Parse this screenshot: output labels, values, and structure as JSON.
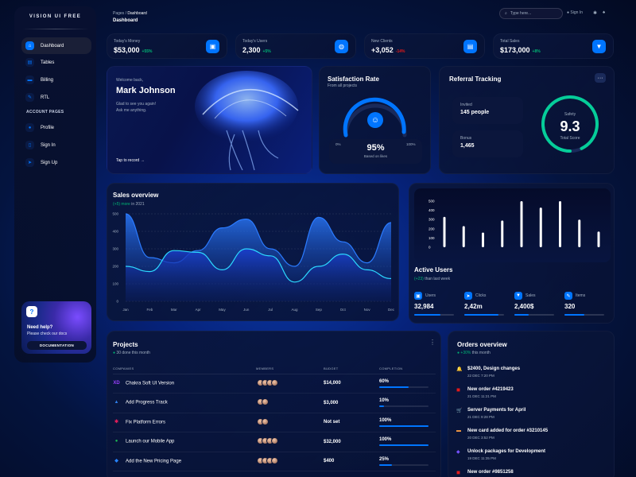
{
  "brand": "VISION UI FREE",
  "nav": {
    "dashboard": "Dashboard",
    "tables": "Tables",
    "billing": "Billing",
    "rtl": "RTL",
    "section": "ACCOUNT PAGES",
    "profile": "Profile",
    "signin": "Sign In",
    "signup": "Sign Up"
  },
  "help": {
    "title": "Need help?",
    "subtitle": "Please check our docs",
    "button": "DOCUMENTATION"
  },
  "breadcrumb": {
    "parent": "Pages",
    "current": "Dashboard"
  },
  "page_title": "Dashboard",
  "search": {
    "placeholder": "Type here..."
  },
  "header": {
    "signin": "Sign In"
  },
  "stats": [
    {
      "label": "Today's Money",
      "value": "$53,000",
      "change": "+55%",
      "icon": "wallet-icon"
    },
    {
      "label": "Today's Users",
      "value": "2,300",
      "change": "+5%",
      "icon": "globe-icon"
    },
    {
      "label": "New Clients",
      "value": "+3,052",
      "change": "-14%",
      "icon": "document-icon"
    },
    {
      "label": "Total Sales",
      "value": "$173,000",
      "change": "+8%",
      "icon": "cart-icon"
    }
  ],
  "welcome": {
    "greeting": "Welcome back,",
    "name": "Mark Johnson",
    "line1": "Glad to see you again!",
    "line2": "Ask me anything.",
    "link": "Tap to record",
    "arrow": "→"
  },
  "satisfaction": {
    "title": "Satisfaction Rate",
    "subtitle": "From all projects",
    "min": "0%",
    "max": "100%",
    "value": "95%",
    "caption": "Based on likes"
  },
  "referral": {
    "title": "Referral Tracking",
    "more": "···",
    "invited_label": "Invited",
    "invited_value": "145 people",
    "bonus_label": "Bonus",
    "bonus_value": "1,465",
    "safety_label": "Safety",
    "score": "9.3",
    "score_label": "Total Score",
    "score_fraction": 0.93
  },
  "sales": {
    "title": "Sales overview",
    "subtitle_change": "(+5) more",
    "subtitle_rest": " in 2021"
  },
  "chart_data": [
    {
      "type": "area",
      "title": "Sales overview",
      "categories": [
        "Jan",
        "Feb",
        "Mar",
        "Apr",
        "May",
        "Jun",
        "Jul",
        "Aug",
        "Sep",
        "Oct",
        "Nov",
        "Dec"
      ],
      "ylim": [
        0,
        500
      ],
      "yticks": [
        0,
        100,
        200,
        300,
        400,
        500
      ],
      "series": [
        {
          "values": [
            500,
            250,
            220,
            290,
            420,
            470,
            300,
            200,
            480,
            340,
            220,
            450
          ]
        },
        {
          "values": [
            200,
            170,
            290,
            280,
            180,
            300,
            260,
            110,
            200,
            270,
            180,
            130
          ]
        }
      ]
    },
    {
      "type": "bar",
      "title": "Active Users",
      "ylim": [
        0,
        500
      ],
      "yticks": [
        0,
        100,
        200,
        300,
        400,
        500
      ],
      "values": [
        330,
        230,
        160,
        290,
        500,
        430,
        500,
        300,
        170
      ]
    }
  ],
  "active": {
    "title": "Active Users",
    "change": "(+23)",
    "rest": " than last week",
    "items": [
      {
        "label": "Users",
        "value": "32,984",
        "icon": "wallet-icon",
        "fill": 0.65
      },
      {
        "label": "Clicks",
        "value": "2,42m",
        "icon": "rocket-icon",
        "fill": 0.85
      },
      {
        "label": "Sales",
        "value": "2,400$",
        "icon": "cart-icon",
        "fill": 0.35
      },
      {
        "label": "Items",
        "value": "320",
        "icon": "wrench-icon",
        "fill": 0.5
      }
    ]
  },
  "projects": {
    "title": "Projects",
    "subtitle": "30 done this month",
    "more": "⋮",
    "columns": [
      "COMPANIES",
      "MEMBERS",
      "BUDGET",
      "COMPLETION"
    ],
    "rows": [
      {
        "company": "Chakra Soft UI Version",
        "budget": "$14,000",
        "completion": "60%",
        "fill": 0.6,
        "icon": "XD",
        "color": "#9a40ff"
      },
      {
        "company": "Add Progress Track",
        "budget": "$3,000",
        "completion": "10%",
        "fill": 0.1,
        "icon": "▲",
        "color": "#2f80ed"
      },
      {
        "company": "Fix Platform Errors",
        "budget": "Not set",
        "completion": "100%",
        "fill": 1,
        "icon": "✱",
        "color": "#e01e5a"
      },
      {
        "company": "Launch our Mobile App",
        "budget": "$32,000",
        "completion": "100%",
        "fill": 1,
        "icon": "●",
        "color": "#1db954"
      },
      {
        "company": "Add the New Pricing Page",
        "budget": "$400",
        "completion": "25%",
        "fill": 0.25,
        "icon": "◆",
        "color": "#2684ff"
      }
    ]
  },
  "orders": {
    "title": "Orders overview",
    "change": "+30%",
    "rest": " this month",
    "items": [
      {
        "title": "$2400, Design changes",
        "date": "22 DEC 7:20 PM",
        "icon": "🔔",
        "color": "#0075ff"
      },
      {
        "title": "New order #4219423",
        "date": "21 DEC 11:21 PM",
        "icon": "◼",
        "color": "#e31a1a"
      },
      {
        "title": "Server Payments for April",
        "date": "21 DEC 9:28 PM",
        "icon": "🛒",
        "color": "#0075ff"
      },
      {
        "title": "New card added for order #3210145",
        "date": "20 DEC 3:52 PM",
        "icon": "▬",
        "color": "#ff9f43"
      },
      {
        "title": "Unlock packages for Development",
        "date": "19 DEC 11:35 PM",
        "icon": "◆",
        "color": "#7551ff"
      },
      {
        "title": "New order #9851258",
        "date": "",
        "icon": "◼",
        "color": "#e31a1a"
      }
    ]
  }
}
